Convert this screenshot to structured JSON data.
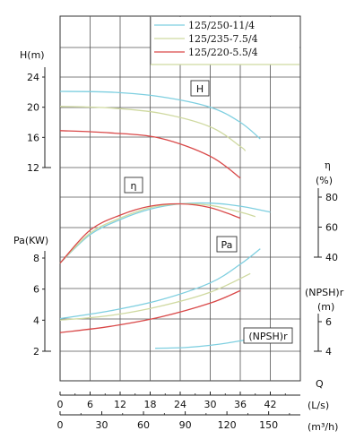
{
  "chart_data": {
    "type": "line",
    "x_flow_ls_ticks": [
      0,
      6,
      12,
      18,
      24,
      30,
      36,
      42
    ],
    "x_flow_m3h_ticks": [
      0,
      30,
      60,
      90,
      120,
      150
    ],
    "x_flow_ls_label": "Q",
    "x_flow_ls_unit": "(L/s)",
    "x_flow_m3h_unit": "(m³/h)",
    "xlim_ls": [
      0,
      48
    ],
    "head": {
      "label": "H(m)",
      "box_label": "H",
      "ylim": [
        12,
        24
      ],
      "ticks": [
        "24",
        "20",
        "16",
        "12"
      ]
    },
    "efficiency": {
      "label_symbol": "η",
      "label_unit": "(%)",
      "box_label": "η",
      "ylim": [
        40,
        80
      ],
      "ticks": [
        "80",
        "60",
        "40"
      ]
    },
    "power": {
      "label": "Pa(KW)",
      "box_label": "Pa",
      "ylim": [
        2,
        8
      ],
      "ticks": [
        "8",
        "6",
        "4",
        "2"
      ]
    },
    "npsh": {
      "label": "(NPSH)r",
      "label_unit": "(m)",
      "box_label": "(NPSH)r",
      "ylim": [
        4,
        6
      ],
      "ticks": [
        "6",
        "4"
      ]
    },
    "legend": [
      {
        "name": "125/250-11/4",
        "color": "#7ecfe0"
      },
      {
        "name": "125/235-7.5/4",
        "color": "#cfd9a0"
      },
      {
        "name": "125/220-5.5/4",
        "color": "#d94848"
      }
    ],
    "series": [
      {
        "name": "125/250-11/4",
        "color": "#7ecfe0",
        "head": [
          [
            0,
            22.1
          ],
          [
            10,
            22.0
          ],
          [
            20,
            21.4
          ],
          [
            30,
            20.0
          ],
          [
            36,
            18.0
          ],
          [
            40,
            15.8
          ]
        ],
        "efficiency": [
          [
            0,
            36
          ],
          [
            6,
            55
          ],
          [
            12,
            65
          ],
          [
            18,
            72
          ],
          [
            24,
            75.5
          ],
          [
            30,
            76
          ],
          [
            36,
            74
          ],
          [
            42,
            70
          ]
        ],
        "power": [
          [
            0,
            4.1
          ],
          [
            10,
            4.6
          ],
          [
            20,
            5.3
          ],
          [
            30,
            6.4
          ],
          [
            36,
            7.6
          ],
          [
            40,
            8.6
          ]
        ],
        "npsh": [
          [
            19,
            4.2
          ],
          [
            25,
            4.25
          ],
          [
            30,
            4.4
          ],
          [
            36,
            4.7
          ],
          [
            40,
            5.0
          ]
        ]
      },
      {
        "name": "125/235-7.5/4",
        "color": "#cfd9a0",
        "head": [
          [
            0,
            20.1
          ],
          [
            10,
            19.9
          ],
          [
            20,
            19.2
          ],
          [
            30,
            17.4
          ],
          [
            36,
            14.8
          ],
          [
            37,
            14.2
          ]
        ],
        "efficiency": [
          [
            0,
            36
          ],
          [
            6,
            56
          ],
          [
            12,
            66
          ],
          [
            18,
            73
          ],
          [
            24,
            75.5
          ],
          [
            30,
            74.5
          ],
          [
            36,
            70
          ],
          [
            39,
            67
          ]
        ],
        "power": [
          [
            0,
            4.0
          ],
          [
            10,
            4.3
          ],
          [
            20,
            4.9
          ],
          [
            30,
            5.8
          ],
          [
            38,
            7.0
          ]
        ],
        "npsh": []
      },
      {
        "name": "125/220-5.5/4",
        "color": "#d94848",
        "head": [
          [
            0,
            16.9
          ],
          [
            10,
            16.6
          ],
          [
            20,
            15.9
          ],
          [
            30,
            13.5
          ],
          [
            36,
            10.6
          ]
        ],
        "efficiency": [
          [
            0,
            36
          ],
          [
            6,
            58
          ],
          [
            12,
            68
          ],
          [
            18,
            74
          ],
          [
            24,
            75.5
          ],
          [
            30,
            73
          ],
          [
            36,
            66
          ]
        ],
        "power": [
          [
            0,
            3.2
          ],
          [
            10,
            3.6
          ],
          [
            20,
            4.2
          ],
          [
            30,
            5.1
          ],
          [
            36,
            5.9
          ]
        ],
        "npsh": []
      }
    ]
  }
}
